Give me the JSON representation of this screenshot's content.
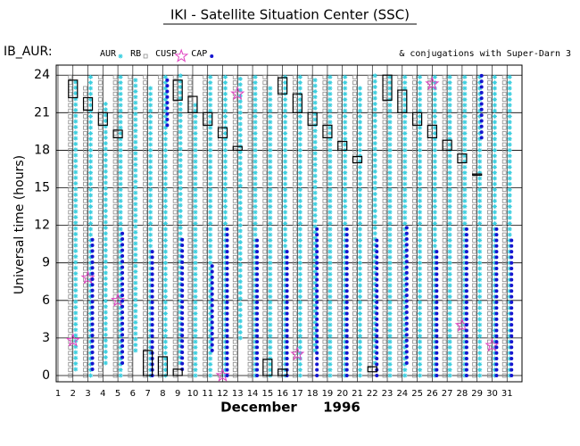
{
  "chart_data": {
    "type": "orbit-timeline",
    "title": "IKI - Satellite Situation Center (SSC)",
    "label": "IB_AUR:",
    "conjugation_label": "& conjugations with Super-Darn 3",
    "ylabel": "Universal time (hours)",
    "xlabel": "December",
    "xlabel_year": "1996",
    "xlim": [
      1,
      32
    ],
    "ylim": [
      -0.5,
      24.8
    ],
    "xticks": [
      1,
      2,
      3,
      4,
      5,
      6,
      7,
      8,
      9,
      10,
      11,
      12,
      13,
      14,
      15,
      16,
      17,
      18,
      19,
      20,
      21,
      22,
      23,
      24,
      25,
      26,
      27,
      28,
      29,
      30,
      31
    ],
    "yticks": [
      0,
      3,
      6,
      9,
      12,
      15,
      18,
      21,
      24
    ],
    "grid": true,
    "series": [
      {
        "name": "AUR",
        "color": "#3ccfe0",
        "marker": "star",
        "intervals": [
          [
            2,
            0.5,
            23.5
          ],
          [
            3,
            0,
            24
          ],
          [
            4,
            1,
            22
          ],
          [
            5,
            0,
            24
          ],
          [
            6,
            2,
            24
          ],
          [
            7,
            0,
            23
          ],
          [
            8,
            0,
            24
          ],
          [
            9,
            1,
            24
          ],
          [
            10,
            0,
            22
          ],
          [
            11,
            0,
            24
          ],
          [
            12,
            0,
            24
          ],
          [
            13,
            3,
            24
          ],
          [
            14,
            0,
            24
          ],
          [
            15,
            0,
            23
          ],
          [
            16,
            0,
            24
          ],
          [
            17,
            0,
            24
          ],
          [
            18,
            2,
            24
          ],
          [
            19,
            0,
            24
          ],
          [
            20,
            0,
            24
          ],
          [
            21,
            0,
            23
          ],
          [
            22,
            1,
            24
          ],
          [
            23,
            0,
            24
          ],
          [
            24,
            0,
            24
          ],
          [
            25,
            0,
            24
          ],
          [
            26,
            0,
            24
          ],
          [
            27,
            0,
            24
          ],
          [
            28,
            0,
            24
          ],
          [
            29,
            0,
            24
          ],
          [
            30,
            0,
            24
          ],
          [
            31,
            0,
            24
          ]
        ]
      },
      {
        "name": "RB",
        "color": "#8c8c8c",
        "marker": "square",
        "intervals": [
          [
            2,
            0,
            24
          ],
          [
            3,
            0,
            23
          ],
          [
            4,
            0,
            24
          ],
          [
            5,
            0,
            24
          ],
          [
            6,
            0,
            24
          ],
          [
            7,
            0,
            24
          ],
          [
            8,
            0,
            24
          ],
          [
            9,
            0,
            24
          ],
          [
            10,
            0,
            24
          ],
          [
            11,
            0,
            24
          ],
          [
            12,
            0,
            24
          ],
          [
            13,
            0,
            24
          ],
          [
            14,
            0,
            24
          ],
          [
            15,
            0,
            24
          ],
          [
            16,
            0,
            24
          ],
          [
            17,
            0,
            24
          ],
          [
            18,
            0,
            24
          ],
          [
            19,
            0,
            24
          ],
          [
            20,
            0,
            24
          ],
          [
            21,
            0,
            24
          ],
          [
            22,
            0,
            24
          ],
          [
            23,
            0,
            24
          ],
          [
            24,
            0,
            24
          ],
          [
            25,
            0,
            24
          ],
          [
            26,
            0,
            24
          ],
          [
            27,
            0,
            24
          ],
          [
            28,
            0,
            24
          ],
          [
            29,
            0,
            24
          ],
          [
            30,
            0,
            24
          ],
          [
            31,
            0,
            24
          ]
        ]
      },
      {
        "name": "CUSP",
        "color": "#e040c0",
        "marker": "cusp",
        "points": [
          [
            2,
            2.8
          ],
          [
            3,
            7.8
          ],
          [
            5,
            6
          ],
          [
            12,
            0
          ],
          [
            13,
            22.5
          ],
          [
            17,
            1.7
          ],
          [
            26,
            23.3
          ],
          [
            28,
            4
          ],
          [
            30,
            2.4
          ]
        ]
      },
      {
        "name": "CAP",
        "color": "#1414d0",
        "marker": "dot",
        "intervals": [
          [
            3,
            0.5,
            11
          ],
          [
            5,
            1,
            11.5
          ],
          [
            7,
            0,
            10
          ],
          [
            8,
            20,
            24
          ],
          [
            9,
            0.5,
            11
          ],
          [
            11,
            2,
            9
          ],
          [
            12,
            0,
            12
          ],
          [
            14,
            0,
            11
          ],
          [
            16,
            0,
            10
          ],
          [
            18,
            0,
            12
          ],
          [
            20,
            0,
            12
          ],
          [
            22,
            0,
            11
          ],
          [
            24,
            1,
            12
          ],
          [
            26,
            0,
            10
          ],
          [
            28,
            0,
            12
          ],
          [
            29,
            19,
            24
          ],
          [
            30,
            0,
            12
          ],
          [
            31,
            0,
            11
          ]
        ]
      }
    ],
    "conjugations": [
      [
        2,
        22.2,
        23.6
      ],
      [
        3,
        21.2,
        22.2
      ],
      [
        4,
        20,
        21
      ],
      [
        5,
        19,
        19.6
      ],
      [
        7,
        0,
        2
      ],
      [
        8,
        0,
        1.5
      ],
      [
        9,
        22,
        23.6
      ],
      [
        9,
        0,
        0.5
      ],
      [
        10,
        21,
        22.3
      ],
      [
        11,
        20,
        21
      ],
      [
        12,
        19,
        19.8
      ],
      [
        13,
        18,
        18.3
      ],
      [
        15,
        0,
        1.3
      ],
      [
        16,
        22.5,
        23.8
      ],
      [
        16,
        0,
        0.5
      ],
      [
        17,
        21,
        22.5
      ],
      [
        18,
        20,
        21
      ],
      [
        19,
        19,
        20
      ],
      [
        20,
        18,
        18.7
      ],
      [
        21,
        17,
        17.5
      ],
      [
        22,
        0.3,
        0.7
      ],
      [
        23,
        22,
        24
      ],
      [
        24,
        21,
        22.8
      ],
      [
        25,
        20,
        21
      ],
      [
        26,
        19,
        20
      ],
      [
        27,
        18,
        18.8
      ],
      [
        28,
        17,
        17.7
      ],
      [
        29,
        16,
        16.1
      ]
    ]
  }
}
